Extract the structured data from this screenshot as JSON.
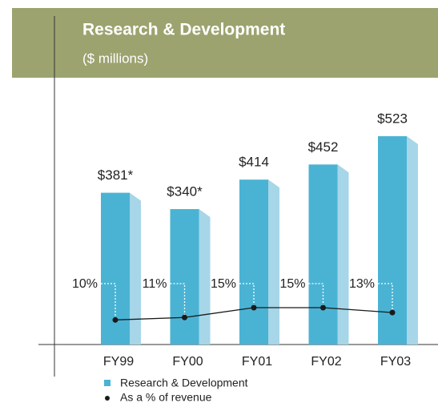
{
  "chart_data": {
    "type": "bar",
    "title": "Research & Development",
    "subtitle": "($ millions)",
    "categories": [
      "FY99",
      "FY00",
      "FY01",
      "FY02",
      "FY03"
    ],
    "series": [
      {
        "name": "Research & Development",
        "type": "bar",
        "color": "#4ab3d4",
        "side_color": "#a6d6e8",
        "values": [
          381,
          340,
          414,
          452,
          523
        ],
        "value_labels": [
          "$381*",
          "$340*",
          "$414",
          "$452",
          "$523"
        ]
      },
      {
        "name": "As a % of revenue",
        "type": "line",
        "color": "#1a1a1a",
        "values": [
          10,
          11,
          15,
          15,
          13
        ],
        "value_labels": [
          "10%",
          "11%",
          "15%",
          "15%",
          "13%"
        ]
      }
    ]
  }
}
